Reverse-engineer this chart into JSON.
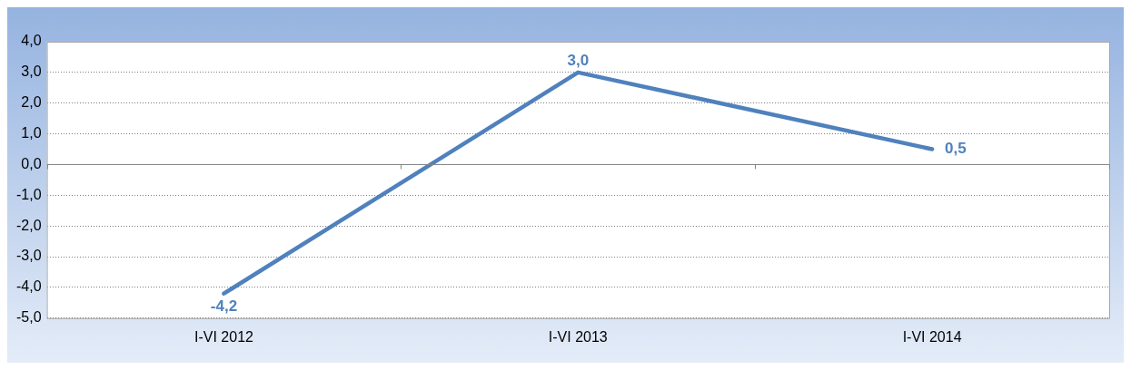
{
  "chart_data": {
    "type": "line",
    "categories": [
      "I-VI 2012",
      "I-VI 2013",
      "I-VI 2014"
    ],
    "series": [
      {
        "color": "#4f81bd",
        "values": [
          -4.2,
          3.0,
          0.5
        ],
        "value_labels": [
          "-4,2",
          "3,0",
          "0,5"
        ]
      }
    ],
    "ylim": [
      -5,
      4
    ],
    "yticks": [
      {
        "value": -5,
        "label": "-5,0"
      },
      {
        "value": -4,
        "label": "-4,0"
      },
      {
        "value": -3,
        "label": "-3,0"
      },
      {
        "value": -2,
        "label": "-2,0"
      },
      {
        "value": -1,
        "label": "-1,0"
      },
      {
        "value": 0,
        "label": "0,0"
      },
      {
        "value": 1,
        "label": "1,0"
      },
      {
        "value": 2,
        "label": "2,0"
      },
      {
        "value": 3,
        "label": "3,0"
      },
      {
        "value": 4,
        "label": "4,0"
      }
    ],
    "grid": "y",
    "legend": false,
    "marker": "none",
    "line_style": "solid"
  }
}
